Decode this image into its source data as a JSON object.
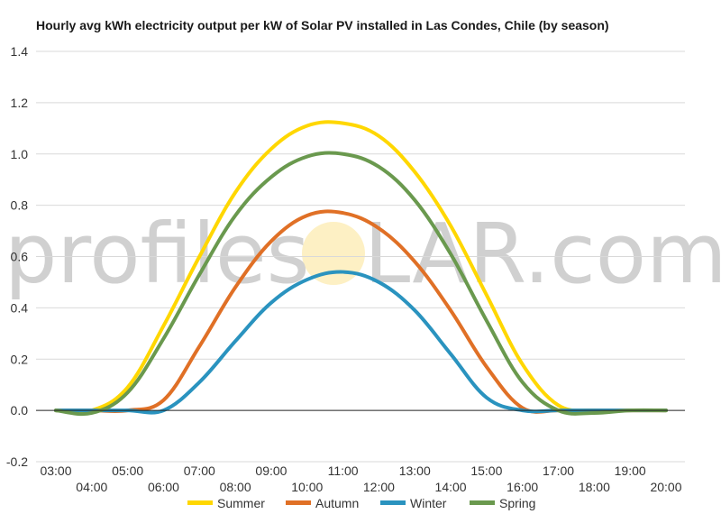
{
  "chart_data": {
    "type": "line",
    "title": "Hourly avg kWh electricity output per kW of Solar PV installed in Las Condes, Chile (by season)",
    "xlabel": "",
    "ylabel": "",
    "x": [
      "03:00",
      "04:00",
      "05:00",
      "06:00",
      "07:00",
      "08:00",
      "09:00",
      "10:00",
      "11:00",
      "12:00",
      "13:00",
      "14:00",
      "15:00",
      "16:00",
      "17:00",
      "18:00",
      "19:00",
      "20:00"
    ],
    "ylim": [
      -0.2,
      1.4
    ],
    "yticks": [
      "1.4",
      "1.2",
      "1.0",
      "0.8",
      "0.6",
      "0.4",
      "0.2",
      "0.0",
      "-0.2"
    ],
    "grid": true,
    "legend_position": "bottom",
    "series": [
      {
        "name": "Summer",
        "color": "#FFD700",
        "values": [
          0.0,
          0.0,
          0.09,
          0.33,
          0.6,
          0.85,
          1.02,
          1.11,
          1.12,
          1.07,
          0.93,
          0.72,
          0.45,
          0.18,
          0.02,
          0.0,
          0.0,
          0.0
        ]
      },
      {
        "name": "Autumn",
        "color": "#E07026",
        "values": [
          0.0,
          0.0,
          0.0,
          0.04,
          0.25,
          0.48,
          0.66,
          0.76,
          0.77,
          0.71,
          0.58,
          0.39,
          0.17,
          0.01,
          0.0,
          0.0,
          0.0,
          0.0
        ]
      },
      {
        "name": "Winter",
        "color": "#2A93BF",
        "values": [
          0.0,
          0.0,
          0.0,
          0.0,
          0.11,
          0.27,
          0.42,
          0.51,
          0.54,
          0.5,
          0.39,
          0.22,
          0.05,
          0.0,
          0.0,
          0.0,
          0.0,
          0.0
        ]
      },
      {
        "name": "Spring",
        "color": "#6A994E",
        "values": [
          0.0,
          -0.01,
          0.07,
          0.28,
          0.53,
          0.76,
          0.91,
          0.99,
          1.0,
          0.95,
          0.82,
          0.61,
          0.35,
          0.11,
          0.0,
          -0.01,
          0.0,
          0.0
        ]
      }
    ]
  },
  "watermark": {
    "left_text": "profiles",
    "right_text": "LAR.com",
    "sun_color": "#FDF0C4"
  }
}
